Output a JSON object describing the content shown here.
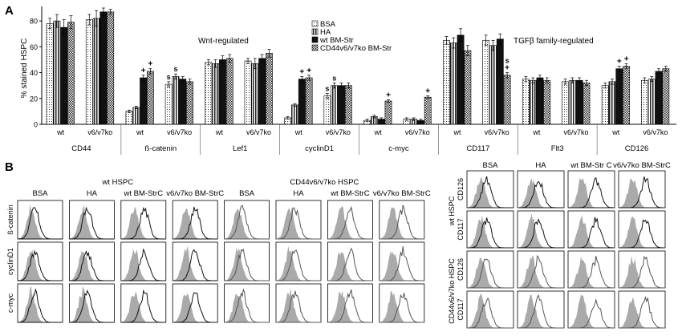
{
  "chart_data": [
    {
      "type": "bar",
      "panel_label": "A",
      "ylabel": "% stained HSPC",
      "ylim": [
        0,
        90
      ],
      "yticks": [
        0,
        20,
        40,
        60,
        80
      ],
      "series": [
        {
          "name": "BSA",
          "pattern": "dots"
        },
        {
          "name": "HA",
          "pattern": "vstripes"
        },
        {
          "name": "wt BM-Str",
          "pattern": "solid"
        },
        {
          "name": "CD44v6/v7ko BM-Str",
          "pattern": "checker"
        }
      ],
      "groups": [
        {
          "label": "CD44",
          "sub": [
            "wt",
            "v6/v7ko"
          ],
          "values": [
            [
              78,
              80,
              75,
              79
            ],
            [
              81,
              82,
              87,
              87
            ]
          ],
          "errors": [
            [
              4,
              5,
              6,
              5
            ],
            [
              4,
              6,
              3,
              2
            ]
          ],
          "marks": [
            [
              "",
              "",
              "",
              ""
            ],
            [
              "",
              "",
              "",
              ""
            ]
          ]
        },
        {
          "label": "ß-catenin",
          "sub": [
            "wt",
            "v6/v7ko"
          ],
          "values": [
            [
              10,
              13,
              36,
              41
            ],
            [
              31,
              37,
              35,
              33
            ]
          ],
          "errors": [
            [
              1,
              1,
              2,
              2
            ],
            [
              2,
              2,
              2,
              2
            ]
          ],
          "marks": [
            [
              "",
              "",
              "+",
              "+"
            ],
            [
              "s",
              "s",
              "",
              ""
            ]
          ]
        },
        {
          "label": "Lef1",
          "sub": [
            "wt",
            "v6/v7ko"
          ],
          "values": [
            [
              48,
              47,
              50,
              51
            ],
            [
              49,
              47,
              51,
              55
            ]
          ],
          "errors": [
            [
              2,
              3,
              3,
              3
            ],
            [
              2,
              4,
              3,
              3
            ]
          ],
          "marks": [
            [
              "",
              "",
              "",
              ""
            ],
            [
              "",
              "",
              "",
              ""
            ]
          ]
        },
        {
          "label": "cyclinD1",
          "sub": [
            "wt",
            "v6/v7ko"
          ],
          "values": [
            [
              5,
              15,
              35,
              36
            ],
            [
              22,
              30,
              30,
              30
            ]
          ],
          "errors": [
            [
              1,
              1,
              2,
              2
            ],
            [
              2,
              2,
              2,
              2
            ]
          ],
          "marks": [
            [
              "",
              "",
              "+",
              "+"
            ],
            [
              "s",
              "s",
              "",
              ""
            ]
          ]
        },
        {
          "label": "c-myc",
          "sub": [
            "wt",
            "v6/v7ko"
          ],
          "values": [
            [
              3,
              6,
              4,
              18
            ],
            [
              4,
              4,
              3,
              21
            ]
          ],
          "errors": [
            [
              1,
              1,
              1,
              1
            ],
            [
              1,
              1,
              1,
              1
            ]
          ],
          "marks": [
            [
              "",
              "",
              "",
              "+"
            ],
            [
              "",
              "",
              "",
              "+"
            ]
          ]
        },
        {
          "label": "CD117",
          "sub": [
            "wt",
            "v6/v7ko"
          ],
          "values": [
            [
              65,
              63,
              69,
              57
            ],
            [
              65,
              61,
              66,
              38
            ]
          ],
          "errors": [
            [
              3,
              4,
              5,
              4
            ],
            [
              4,
              4,
              4,
              2
            ]
          ],
          "marks": [
            [
              "",
              "",
              "",
              ""
            ],
            [
              "",
              "",
              "",
              "s+"
            ]
          ]
        },
        {
          "label": "Flt3",
          "sub": [
            "wt",
            "v6/v7ko"
          ],
          "values": [
            [
              35,
              34,
              36,
              34
            ],
            [
              33,
              34,
              34,
              32
            ]
          ],
          "errors": [
            [
              2,
              2,
              2,
              2
            ],
            [
              2,
              2,
              2,
              2
            ]
          ],
          "marks": [
            [
              "",
              "",
              "",
              ""
            ],
            [
              "",
              "",
              "",
              ""
            ]
          ]
        },
        {
          "label": "CD126",
          "sub": [
            "wt",
            "v6/v7ko"
          ],
          "values": [
            [
              30,
              33,
              43,
              45
            ],
            [
              34,
              35,
              41,
              43
            ]
          ],
          "errors": [
            [
              2,
              2,
              2,
              2
            ],
            [
              2,
              2,
              2,
              2
            ]
          ],
          "marks": [
            [
              "",
              "",
              "+",
              "+"
            ],
            [
              "",
              "",
              "",
              ""
            ]
          ]
        }
      ],
      "annotations": [
        "Wnt-regulated",
        "TGFβ family-regulated"
      ]
    },
    {
      "type": "histogram-grid",
      "panel_label": "B",
      "left_grid": {
        "group_headers": [
          "wt HSPC",
          "CD44v6/v7ko HSPC"
        ],
        "columns": [
          "BSA",
          "HA",
          "wt BM-StrC",
          "v6/v7ko BM-StrC",
          "BSA",
          "HA",
          "wt BM-StrC",
          "v6/v7ko BM-StrC"
        ],
        "rows": [
          "ß-catenin",
          "cyclinD1",
          "c-myc"
        ]
      },
      "right_grid": {
        "columns": [
          "BSA",
          "HA",
          "wt BM-Str C",
          "v6/v7ko BM-StrC"
        ],
        "row_groups": [
          "wt HSPC",
          "CD44v6/v7ko HSPC"
        ],
        "rows": [
          "CD126",
          "CD117",
          "CD126",
          "CD117"
        ]
      }
    }
  ]
}
